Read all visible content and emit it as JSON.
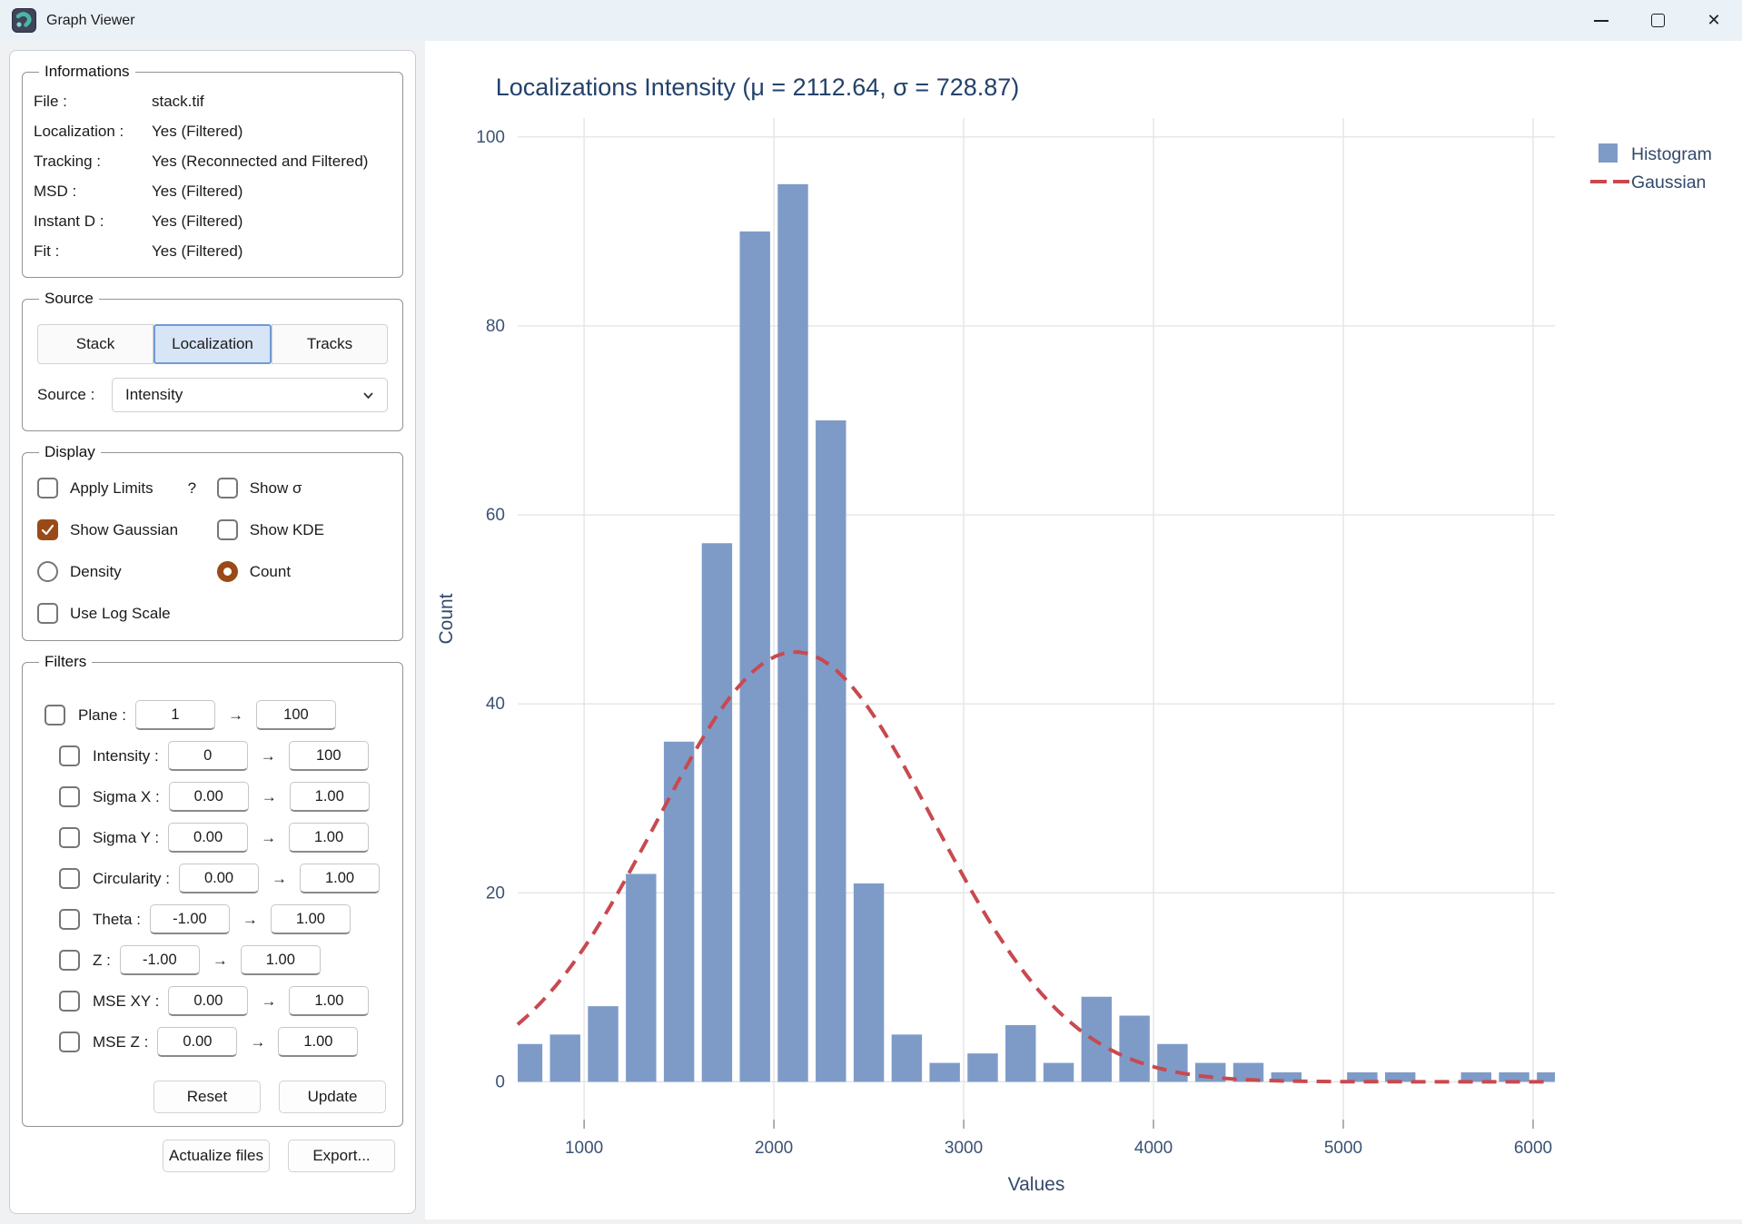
{
  "window": {
    "title": "Graph Viewer",
    "controls": {
      "minimize": "minimize",
      "maximize": "maximize",
      "close": "✕"
    }
  },
  "informations": {
    "legend": "Informations",
    "rows": [
      {
        "label": "File :",
        "value": "stack.tif"
      },
      {
        "label": "Localization :",
        "value": "Yes (Filtered)"
      },
      {
        "label": "Tracking :",
        "value": "Yes (Reconnected and Filtered)"
      },
      {
        "label": "MSD :",
        "value": "Yes (Filtered)"
      },
      {
        "label": "Instant D :",
        "value": "Yes (Filtered)"
      },
      {
        "label": "Fit :",
        "value": "Yes (Filtered)"
      }
    ]
  },
  "source": {
    "legend": "Source",
    "tabs": [
      {
        "key": "stack",
        "label": "Stack",
        "selected": false
      },
      {
        "key": "localization",
        "label": "Localization",
        "selected": true
      },
      {
        "key": "tracks",
        "label": "Tracks",
        "selected": false
      }
    ],
    "source_label": "Source :",
    "source_value": "Intensity"
  },
  "display": {
    "legend": "Display",
    "options": [
      {
        "key": "apply_limits",
        "type": "checkbox",
        "checked": false,
        "label": "Apply Limits",
        "suffix": "?"
      },
      {
        "key": "show_sigma",
        "type": "checkbox",
        "checked": false,
        "label": "Show σ"
      },
      {
        "key": "show_gaussian",
        "type": "checkbox",
        "checked": true,
        "label": "Show Gaussian"
      },
      {
        "key": "show_kde",
        "type": "checkbox",
        "checked": false,
        "label": "Show KDE"
      },
      {
        "key": "density",
        "type": "radio",
        "checked": false,
        "label": "Density"
      },
      {
        "key": "count",
        "type": "radio",
        "checked": true,
        "label": "Count"
      },
      {
        "key": "use_log_scale",
        "type": "checkbox",
        "checked": false,
        "label": "Use Log Scale"
      }
    ]
  },
  "filters": {
    "legend": "Filters",
    "arrow": "→",
    "rows": [
      {
        "key": "plane",
        "label": "Plane :",
        "from": "1",
        "to": "100",
        "indent": false
      },
      {
        "key": "intensity",
        "label": "Intensity :",
        "from": "0",
        "to": "100",
        "indent": true
      },
      {
        "key": "sigma_x",
        "label": "Sigma X :",
        "from": "0.00",
        "to": "1.00",
        "indent": true
      },
      {
        "key": "sigma_y",
        "label": "Sigma Y :",
        "from": "0.00",
        "to": "1.00",
        "indent": true
      },
      {
        "key": "circularity",
        "label": "Circularity :",
        "from": "0.00",
        "to": "1.00",
        "indent": true
      },
      {
        "key": "theta",
        "label": "Theta :",
        "from": "-1.00",
        "to": "1.00",
        "indent": true
      },
      {
        "key": "z",
        "label": "Z :",
        "from": "-1.00",
        "to": "1.00",
        "indent": true
      },
      {
        "key": "mse_xy",
        "label": "MSE XY :",
        "from": "0.00",
        "to": "1.00",
        "indent": true
      },
      {
        "key": "mse_z",
        "label": "MSE Z :",
        "from": "0.00",
        "to": "1.00",
        "indent": true
      }
    ],
    "reset": "Reset",
    "update": "Update"
  },
  "footer": {
    "actualize": "Actualize files",
    "export": "Export..."
  },
  "chart_data": {
    "type": "bar",
    "title": "Localizations Intensity (μ = 2112.64, σ = 728.87)",
    "xlabel": "Values",
    "ylabel": "Count",
    "xlim": [
      650,
      6115
    ],
    "ylim": [
      -4,
      102
    ],
    "x_ticks": [
      1000,
      2000,
      3000,
      4000,
      5000,
      6000
    ],
    "y_ticks": [
      0,
      20,
      40,
      60,
      80,
      100
    ],
    "grid": true,
    "bin_width": 200,
    "bar_display_width": 160,
    "histogram": {
      "centers": [
        700,
        900,
        1100,
        1300,
        1500,
        1700,
        1900,
        2100,
        2300,
        2500,
        2700,
        2900,
        3100,
        3300,
        3500,
        3700,
        3900,
        4100,
        4300,
        4500,
        4700,
        4900,
        5100,
        5300,
        5500,
        5700,
        5900,
        6100
      ],
      "counts": [
        4,
        5,
        8,
        22,
        36,
        57,
        90,
        95,
        70,
        21,
        5,
        2,
        3,
        6,
        2,
        9,
        7,
        4,
        2,
        2,
        1,
        0,
        1,
        1,
        0,
        1,
        1,
        1
      ]
    },
    "gaussian": {
      "mu": 2112.64,
      "sigma": 728.87,
      "amplitude": 45.5
    },
    "legend": [
      {
        "label": "Histogram",
        "marker": "square"
      },
      {
        "label": "Gaussian",
        "marker": "dashed-line"
      }
    ],
    "legend_position": "upper right (outside axes)",
    "colors": {
      "bar": "#7e9bc8",
      "line": "#c8494f",
      "grid": "#e3e5e7",
      "tick_text": "#3b5275",
      "label_text": "#33496b",
      "title_text": "#24426b"
    }
  }
}
